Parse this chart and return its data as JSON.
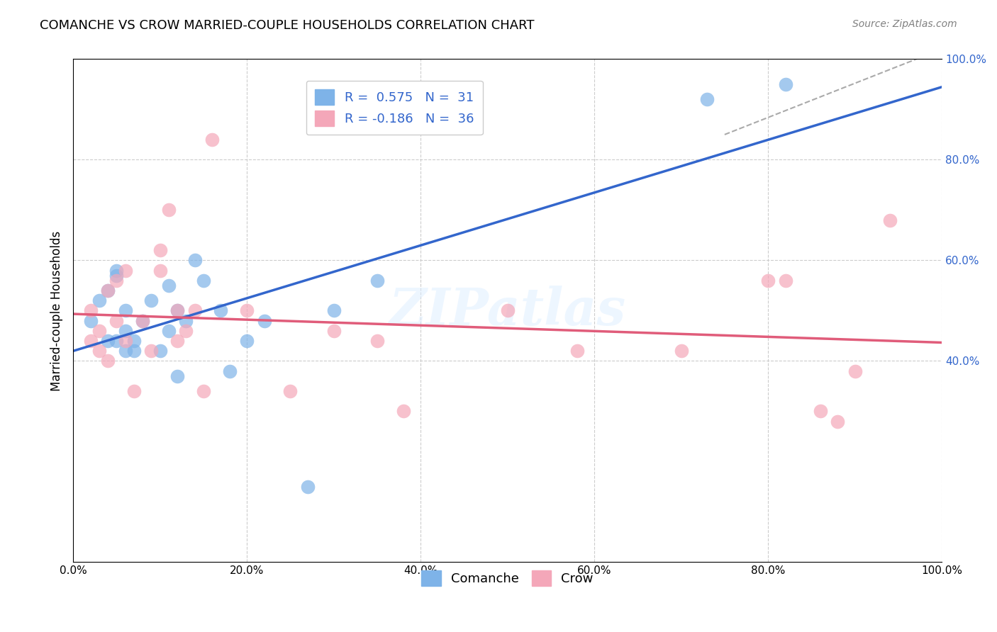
{
  "title": "COMANCHE VS CROW MARRIED-COUPLE HOUSEHOLDS CORRELATION CHART",
  "source": "Source: ZipAtlas.com",
  "ylabel": "Married-couple Households",
  "xlabel": "",
  "xlim": [
    0.0,
    1.0
  ],
  "ylim": [
    0.0,
    1.0
  ],
  "xtick_labels": [
    "0.0%",
    "20.0%",
    "40.0%",
    "60.0%",
    "80.0%",
    "100.0%"
  ],
  "xtick_positions": [
    0.0,
    0.2,
    0.4,
    0.6,
    0.8,
    1.0
  ],
  "ytick_labels_right": [
    "100.0%",
    "80.0%",
    "60.0%",
    "40.0%"
  ],
  "ytick_positions_right": [
    1.0,
    0.8,
    0.6,
    0.4
  ],
  "comanche_color": "#7EB3E8",
  "crow_color": "#F4A7B9",
  "trend_comanche_color": "#3366CC",
  "trend_crow_color": "#E05C7A",
  "trend_dashed_color": "#AAAAAA",
  "legend_R_comanche": "R =  0.575",
  "legend_N_comanche": "N =  31",
  "legend_R_crow": "R = -0.186",
  "legend_N_crow": "N =  36",
  "watermark": "ZIPatlas",
  "comanche_x": [
    0.02,
    0.03,
    0.04,
    0.04,
    0.05,
    0.05,
    0.05,
    0.06,
    0.06,
    0.06,
    0.07,
    0.07,
    0.08,
    0.09,
    0.1,
    0.11,
    0.11,
    0.12,
    0.12,
    0.13,
    0.14,
    0.15,
    0.17,
    0.18,
    0.2,
    0.22,
    0.27,
    0.3,
    0.35,
    0.73,
    0.82
  ],
  "comanche_y": [
    0.48,
    0.52,
    0.54,
    0.44,
    0.57,
    0.58,
    0.44,
    0.46,
    0.5,
    0.42,
    0.42,
    0.44,
    0.48,
    0.52,
    0.42,
    0.55,
    0.46,
    0.5,
    0.37,
    0.48,
    0.6,
    0.56,
    0.5,
    0.38,
    0.44,
    0.48,
    0.15,
    0.5,
    0.56,
    0.92,
    0.95
  ],
  "crow_x": [
    0.02,
    0.02,
    0.03,
    0.03,
    0.04,
    0.04,
    0.05,
    0.05,
    0.06,
    0.06,
    0.07,
    0.08,
    0.09,
    0.1,
    0.1,
    0.11,
    0.12,
    0.12,
    0.13,
    0.14,
    0.15,
    0.16,
    0.2,
    0.25,
    0.3,
    0.35,
    0.38,
    0.5,
    0.58,
    0.7,
    0.8,
    0.82,
    0.86,
    0.88,
    0.9,
    0.94
  ],
  "crow_y": [
    0.5,
    0.44,
    0.46,
    0.42,
    0.54,
    0.4,
    0.56,
    0.48,
    0.58,
    0.44,
    0.34,
    0.48,
    0.42,
    0.62,
    0.58,
    0.7,
    0.5,
    0.44,
    0.46,
    0.5,
    0.34,
    0.84,
    0.5,
    0.34,
    0.46,
    0.44,
    0.3,
    0.5,
    0.42,
    0.42,
    0.56,
    0.56,
    0.3,
    0.28,
    0.38,
    0.68
  ]
}
